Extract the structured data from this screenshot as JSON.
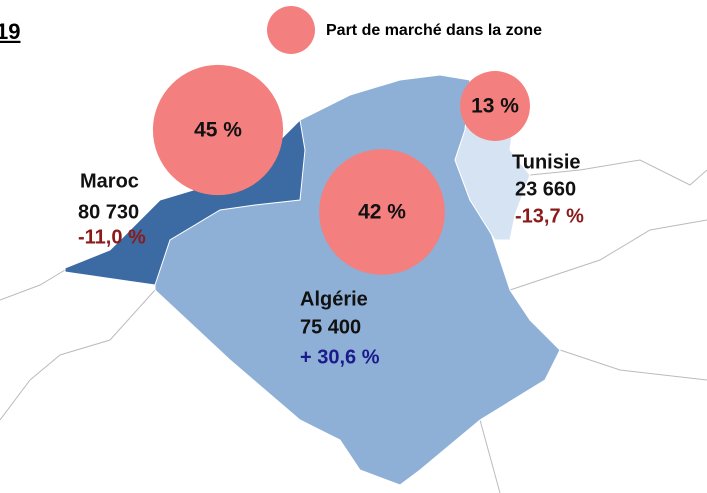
{
  "title": "19",
  "legend": {
    "label": "Part de marché dans la zone",
    "color": "#f47f7f"
  },
  "countries": [
    {
      "name": "Maroc",
      "value": "80 730",
      "change": "-11,0 %",
      "share": 45,
      "share_label": "45 %"
    },
    {
      "name": "Algérie",
      "value": "75 400",
      "change": "+ 30,6 %",
      "share": 42,
      "share_label": "42 %"
    },
    {
      "name": "Tunisie",
      "value": "23 660",
      "change": "-13,7 %",
      "share": 13,
      "share_label": "13 %"
    }
  ]
}
